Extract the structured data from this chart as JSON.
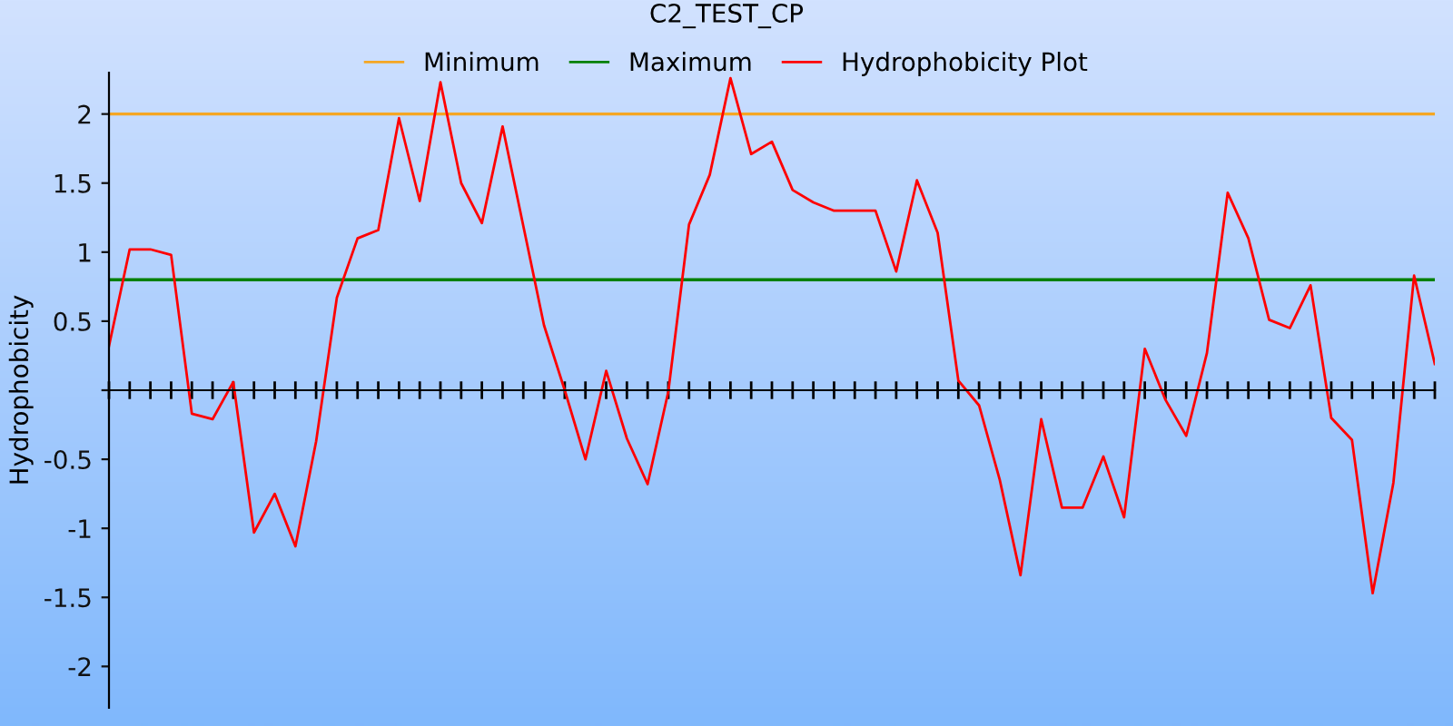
{
  "chart_data": {
    "type": "line",
    "title": "C2_TEST_CP",
    "ylabel": "Hydrophobicity",
    "categories": [
      null,
      null,
      null,
      null,
      null,
      null,
      null,
      null,
      null,
      null,
      null,
      null,
      null,
      null,
      null,
      null,
      null,
      null,
      null,
      null,
      null,
      null,
      null,
      null,
      null,
      null,
      null,
      null,
      null,
      null,
      null,
      null,
      null,
      null,
      null,
      null,
      null,
      null,
      null,
      null,
      null,
      null,
      null,
      null,
      null,
      null,
      null,
      null,
      null,
      null,
      null,
      null,
      null,
      null,
      null,
      null,
      null,
      null,
      null,
      null,
      null,
      null,
      null,
      null,
      null
    ],
    "series": [
      {
        "name": "Hydrophobicity Plot",
        "color": "#ff0000",
        "values": [
          0.32,
          1.02,
          1.02,
          0.98,
          -0.17,
          -0.21,
          0.06,
          -1.03,
          -0.75,
          -1.13,
          -0.37,
          0.67,
          1.1,
          1.16,
          1.97,
          1.37,
          2.23,
          1.5,
          1.21,
          1.91,
          1.19,
          0.47,
          0.0,
          -0.5,
          0.14,
          -0.35,
          -0.68,
          -0.01,
          1.2,
          1.56,
          2.26,
          1.71,
          1.8,
          1.45,
          1.36,
          1.3,
          1.3,
          1.3,
          0.86,
          1.52,
          1.14,
          0.07,
          -0.11,
          -0.65,
          -1.34,
          -0.21,
          -0.85,
          -0.85,
          -0.48,
          -0.92,
          0.3,
          -0.07,
          -0.33,
          0.27,
          1.43,
          1.1,
          0.51,
          0.45,
          0.76,
          -0.2,
          -0.36,
          -1.47,
          -0.67,
          0.83,
          0.19
        ]
      }
    ],
    "ref_lines": [
      {
        "axis": "y",
        "value": 2,
        "label": "Minimum",
        "color": "#f5a623"
      },
      {
        "axis": "y",
        "value": 0.8,
        "label": "Maximum",
        "color": "#008000"
      }
    ],
    "ylim": [
      -2.3,
      2.3
    ],
    "yticks": [
      -2,
      -1.5,
      -1,
      -0.5,
      {
        "value": 0,
        "label": null
      },
      0.5,
      1,
      1.5,
      2
    ],
    "grid": false,
    "legend": "top",
    "marker": "none",
    "line_style": "solid"
  }
}
